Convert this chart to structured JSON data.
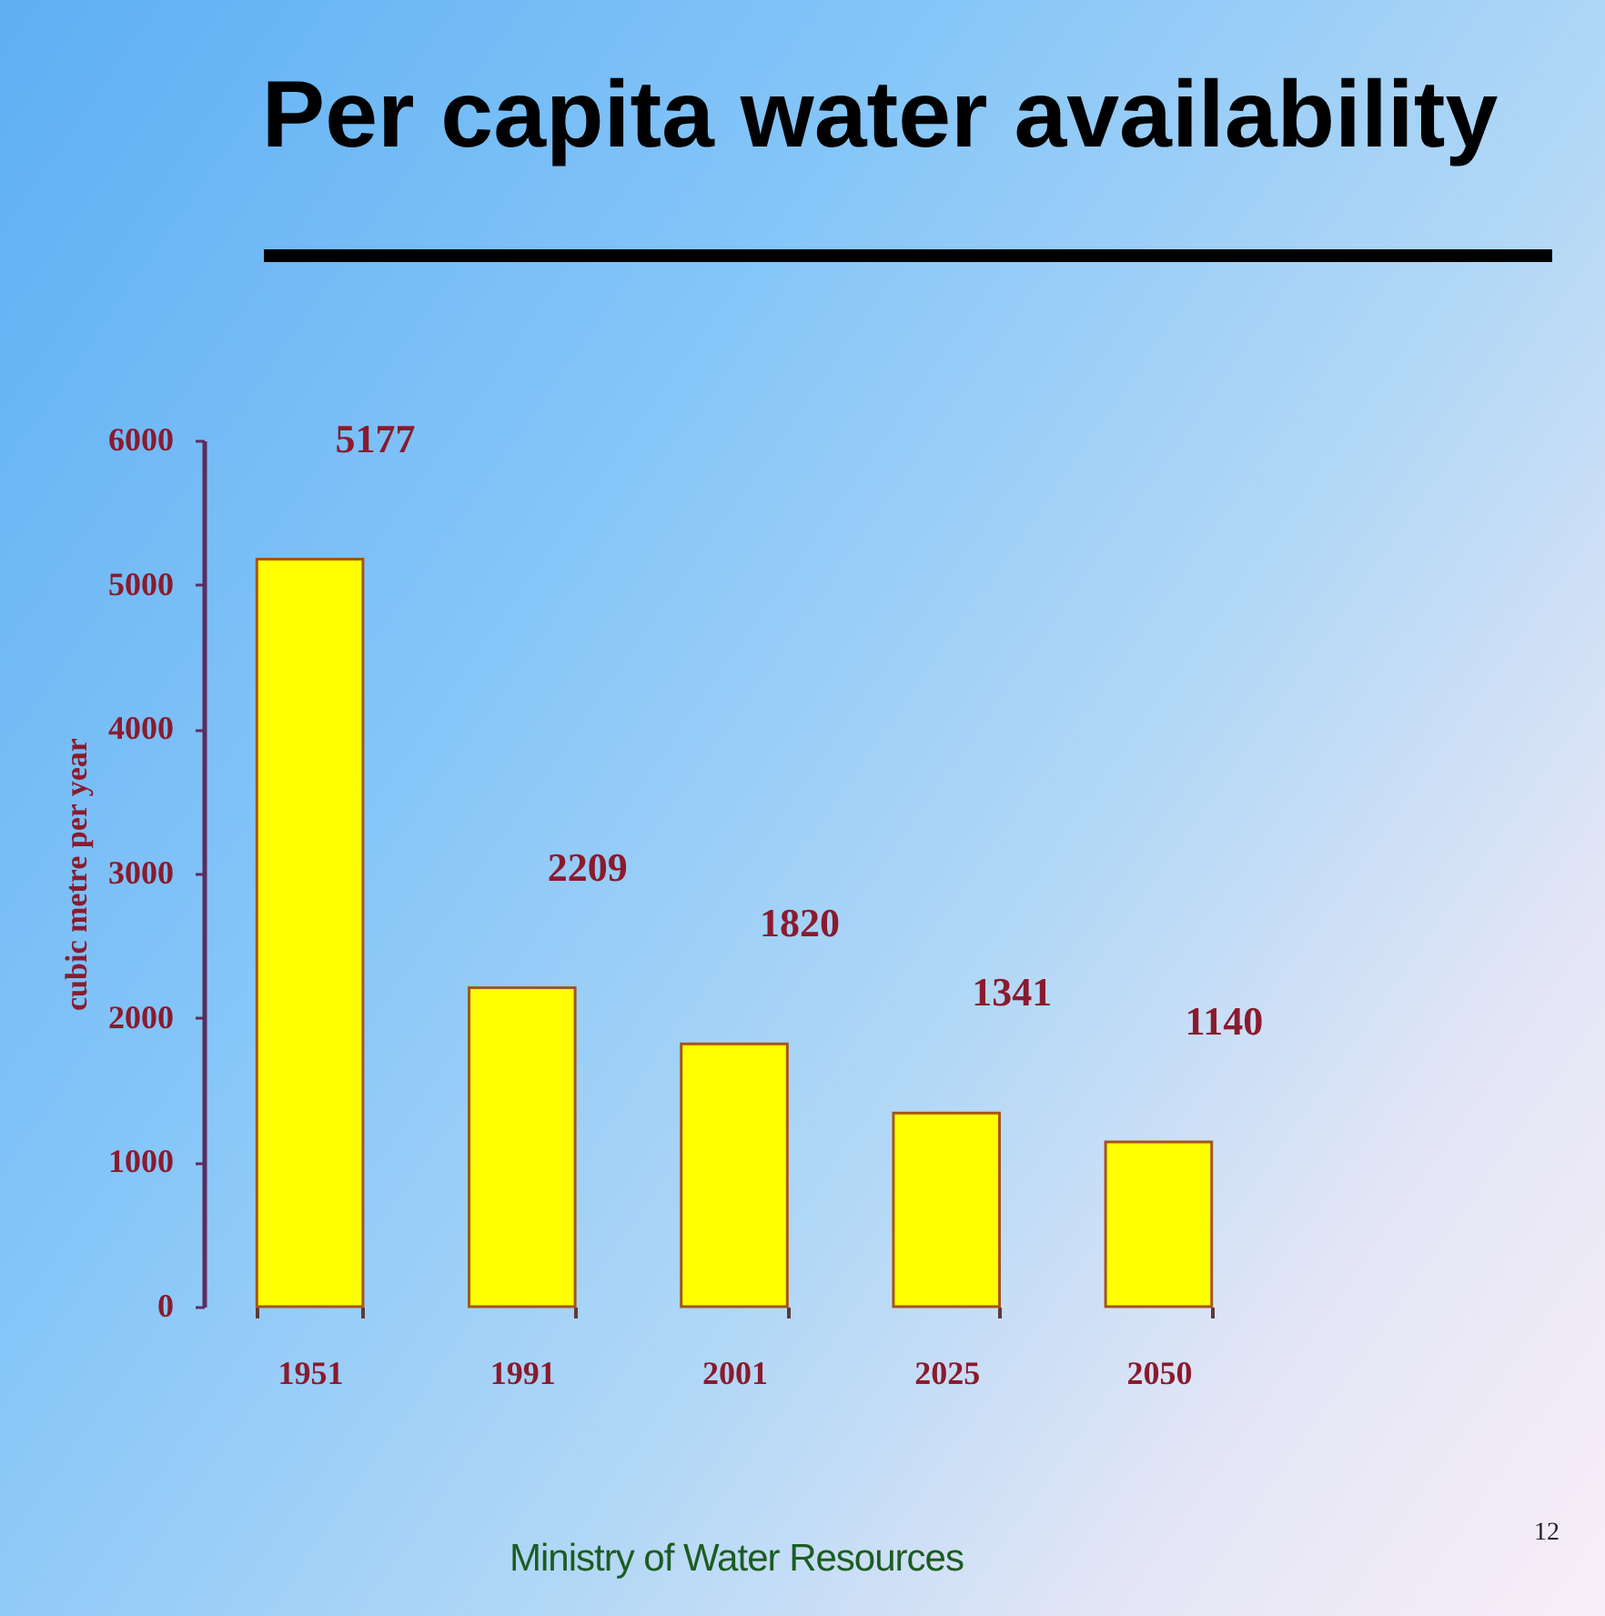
{
  "chart_data": {
    "type": "bar",
    "title": "Per capita water availability",
    "ylabel": "cubic metre per year",
    "categories": [
      "1951",
      "1991",
      "2001",
      "2025",
      "2050"
    ],
    "values": [
      5177,
      2209,
      1820,
      1341,
      1140
    ],
    "color": "#ffff00",
    "ylim": [
      0,
      6000
    ],
    "yticks": [
      0,
      1000,
      2000,
      3000,
      4000,
      5000,
      6000
    ],
    "data_labels": true,
    "annotations": [
      "Ministry of Water Resources",
      "12"
    ]
  }
}
